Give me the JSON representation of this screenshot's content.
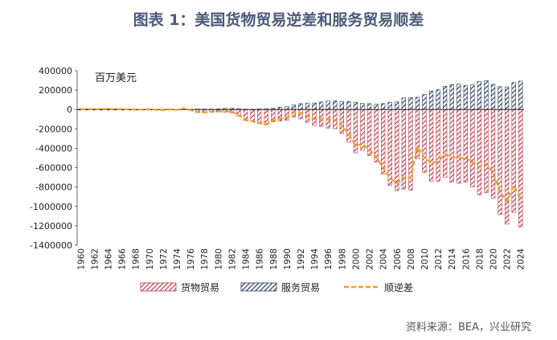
{
  "title": "图表 1：美国货物贸易逆差和服务贸易顺差",
  "unit": "百万美元",
  "source": "资料来源：BEA，兴业研究",
  "colors": {
    "goods": "#c0394a",
    "services": "#2c3e5f",
    "balance": "#f0a020"
  },
  "chart_data": {
    "type": "bar",
    "title": "图表 1：美国货物贸易逆差和服务贸易顺差",
    "ylabel": "百万美元",
    "ylim": [
      -1400000,
      400000
    ],
    "yticks": [
      400000,
      200000,
      0,
      -200000,
      -400000,
      -600000,
      -800000,
      -1000000,
      -1200000,
      -1400000
    ],
    "categories": [
      1960,
      1961,
      1962,
      1963,
      1964,
      1965,
      1966,
      1967,
      1968,
      1969,
      1970,
      1971,
      1972,
      1973,
      1974,
      1975,
      1976,
      1977,
      1978,
      1979,
      1980,
      1981,
      1982,
      1983,
      1984,
      1985,
      1986,
      1987,
      1988,
      1989,
      1990,
      1991,
      1992,
      1993,
      1994,
      1995,
      1996,
      1997,
      1998,
      1999,
      2000,
      2001,
      2002,
      2003,
      2004,
      2005,
      2006,
      2007,
      2008,
      2009,
      2010,
      2011,
      2012,
      2013,
      2014,
      2015,
      2016,
      2017,
      2018,
      2019,
      2020,
      2021,
      2022,
      2023,
      2024
    ],
    "xtick_labels": [
      "1960",
      "1962",
      "1964",
      "1966",
      "1968",
      "1970",
      "1972",
      "1974",
      "1976",
      "1978",
      "1980",
      "1982",
      "1984",
      "1986",
      "1988",
      "1990",
      "1992",
      "1994",
      "1996",
      "1998",
      "2000",
      "2002",
      "2004",
      "2006",
      "2008",
      "2010",
      "2012",
      "2014",
      "2016",
      "2018",
      "2020",
      "2022",
      "2024"
    ],
    "legend": {
      "position": "bottom"
    },
    "series": [
      {
        "name": "货物贸易",
        "type": "bar",
        "pattern": "diagonal-hatch",
        "values": [
          4900,
          5600,
          4500,
          5200,
          6800,
          5000,
          3800,
          3800,
          600,
          600,
          2600,
          -2300,
          -6400,
          900,
          -5500,
          8900,
          -9500,
          -31100,
          -33900,
          -27600,
          -25500,
          -28000,
          -36500,
          -67100,
          -112500,
          -122200,
          -145100,
          -159600,
          -126900,
          -117700,
          -111000,
          -76900,
          -96900,
          -132500,
          -165800,
          -174200,
          -191000,
          -198400,
          -248200,
          -336300,
          -446800,
          -422400,
          -475200,
          -541600,
          -664800,
          -782800,
          -837300,
          -821200,
          -832500,
          -509700,
          -648700,
          -740600,
          -741100,
          -700500,
          -749900,
          -761900,
          -749800,
          -799300,
          -880300,
          -857300,
          -913900,
          -1083500,
          -1183000,
          -1062000,
          -1212000
        ]
      },
      {
        "name": "服务贸易",
        "type": "bar",
        "pattern": "diagonal-hatch",
        "values": [
          -1400,
          -900,
          -500,
          -500,
          -400,
          -300,
          -1300,
          -1800,
          -1300,
          -1400,
          -300,
          900,
          1000,
          900,
          1200,
          2500,
          3400,
          3900,
          4200,
          3700,
          6100,
          11900,
          12300,
          9300,
          3400,
          300,
          5900,
          7100,
          12400,
          24600,
          30200,
          45800,
          60400,
          63700,
          67300,
          77800,
          86900,
          90200,
          82100,
          82700,
          74900,
          64400,
          61200,
          54000,
          61700,
          75000,
          78900,
          119100,
          123800,
          126600,
          154000,
          191000,
          204500,
          240000,
          257000,
          262000,
          249000,
          255000,
          288000,
          298000,
          260000,
          236000,
          233000,
          278000,
          293000
        ]
      },
      {
        "name": "顺逆差",
        "type": "line",
        "style": "dashed",
        "values": [
          3500,
          4700,
          4000,
          4700,
          6400,
          4700,
          2500,
          2000,
          -700,
          -800,
          2300,
          -1400,
          -5400,
          1900,
          -4300,
          12400,
          -6100,
          -27200,
          -29700,
          -23900,
          -19400,
          -16200,
          -24200,
          -57800,
          -109100,
          -121900,
          -139200,
          -152500,
          -114500,
          -93100,
          -80800,
          -31100,
          -36500,
          -68800,
          -98500,
          -96400,
          -104100,
          -108200,
          -166100,
          -253600,
          -371900,
          -358000,
          -414000,
          -487600,
          -603100,
          -707800,
          -758400,
          -702100,
          -708700,
          -383100,
          -494700,
          -549600,
          -536600,
          -460500,
          -492900,
          -499900,
          -500800,
          -544300,
          -592300,
          -559300,
          -653900,
          -847500,
          -950000,
          -784000,
          -919000
        ]
      }
    ]
  }
}
